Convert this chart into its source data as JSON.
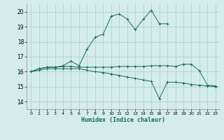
{
  "xlabel": "Humidex (Indice chaleur)",
  "ylabel": "",
  "xlim": [
    -0.5,
    23.5
  ],
  "ylim": [
    13.5,
    20.5
  ],
  "yticks": [
    14,
    15,
    16,
    17,
    18,
    19,
    20
  ],
  "xticks": [
    0,
    1,
    2,
    3,
    4,
    5,
    6,
    7,
    8,
    9,
    10,
    11,
    12,
    13,
    14,
    15,
    16,
    17,
    18,
    19,
    20,
    21,
    22,
    23
  ],
  "line_color": "#1a6b5a",
  "bg_color": "#d4ecea",
  "grid_color": "#a8cfc9",
  "max_y": [
    16.0,
    16.2,
    16.3,
    16.3,
    16.4,
    16.7,
    16.4,
    17.5,
    18.3,
    18.5,
    19.7,
    19.85,
    19.5,
    18.8,
    19.5,
    20.1,
    19.2,
    19.2,
    null,
    null,
    null,
    null,
    null,
    null
  ],
  "avg_y": [
    16.0,
    16.2,
    16.3,
    16.3,
    16.35,
    16.35,
    16.3,
    16.3,
    16.3,
    16.3,
    16.3,
    16.35,
    16.35,
    16.35,
    16.35,
    16.4,
    16.4,
    16.4,
    16.35,
    16.5,
    16.5,
    16.05,
    15.1,
    15.05
  ],
  "min_y": [
    16.0,
    16.1,
    16.2,
    16.2,
    16.2,
    16.2,
    16.2,
    16.1,
    16.0,
    15.95,
    15.85,
    15.75,
    15.65,
    15.55,
    15.45,
    15.35,
    14.2,
    15.3,
    15.3,
    15.25,
    15.15,
    15.1,
    15.05,
    15.0
  ]
}
